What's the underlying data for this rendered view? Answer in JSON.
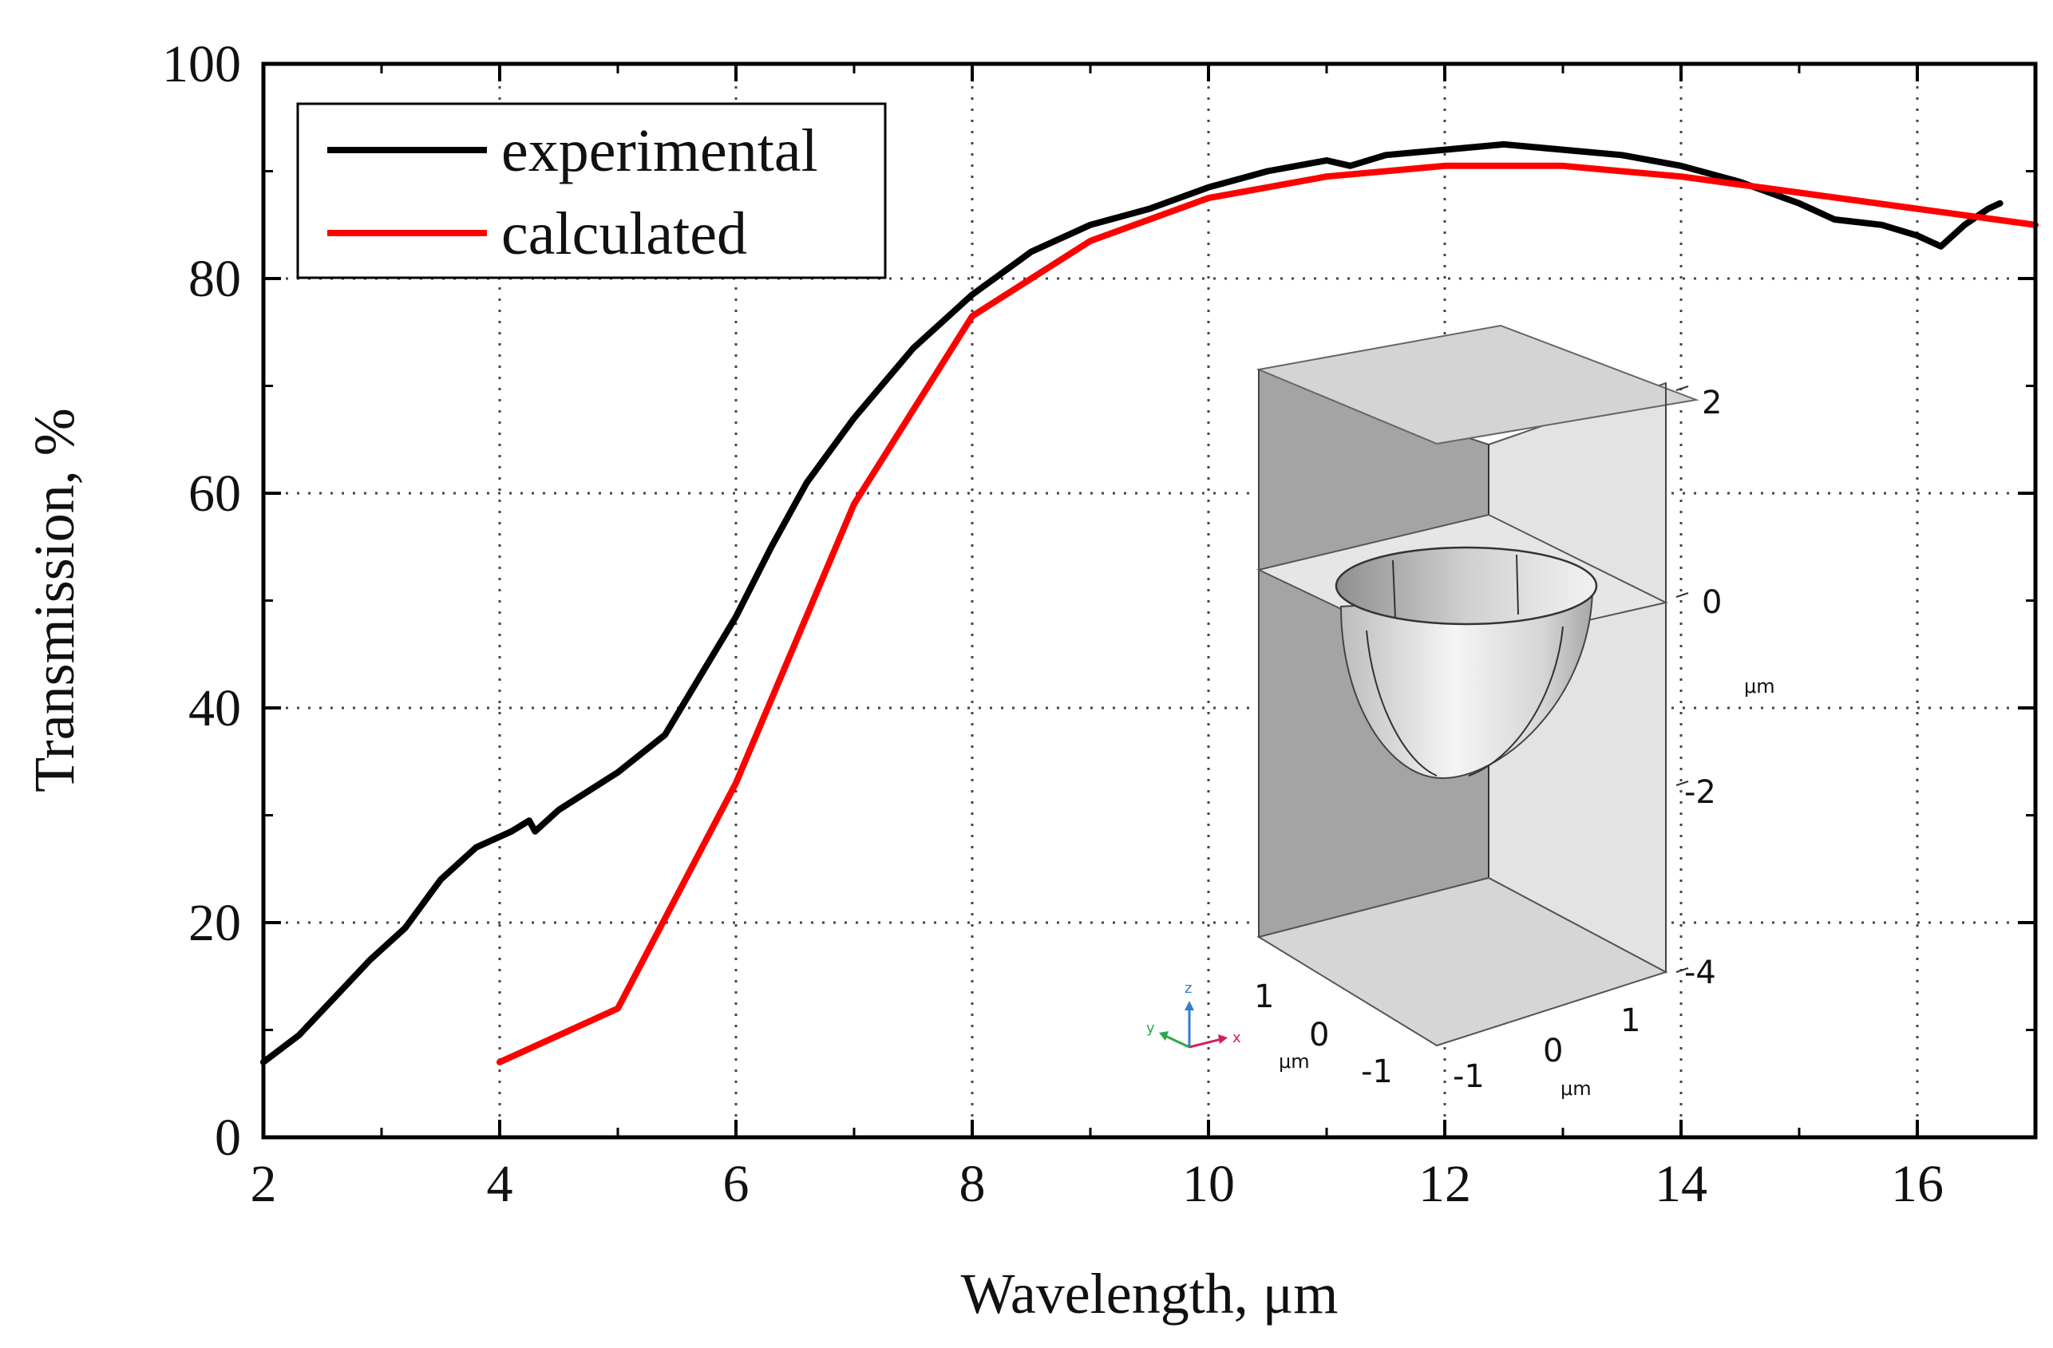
{
  "chart_data": {
    "type": "line",
    "title": "",
    "xlabel": "Wavelength, μm",
    "ylabel": "Transmission, %",
    "xlim": [
      2,
      17
    ],
    "ylim": [
      0,
      100
    ],
    "x_ticks": [
      2,
      4,
      6,
      8,
      10,
      12,
      14,
      16
    ],
    "y_ticks": [
      0,
      20,
      40,
      60,
      80,
      100
    ],
    "grid": true,
    "legend_position": "top-left",
    "series": [
      {
        "name": "experimental",
        "color": "#000000",
        "points": [
          [
            2.0,
            7.0
          ],
          [
            2.3,
            9.5
          ],
          [
            2.6,
            13.0
          ],
          [
            2.9,
            16.5
          ],
          [
            3.2,
            19.5
          ],
          [
            3.5,
            24.0
          ],
          [
            3.8,
            27.0
          ],
          [
            4.1,
            28.5
          ],
          [
            4.25,
            29.5
          ],
          [
            4.3,
            28.5
          ],
          [
            4.5,
            30.5
          ],
          [
            5.0,
            34.0
          ],
          [
            5.4,
            37.5
          ],
          [
            5.7,
            43.0
          ],
          [
            6.0,
            48.5
          ],
          [
            6.3,
            55.0
          ],
          [
            6.6,
            61.0
          ],
          [
            7.0,
            67.0
          ],
          [
            7.5,
            73.5
          ],
          [
            8.0,
            78.5
          ],
          [
            8.5,
            82.5
          ],
          [
            9.0,
            85.0
          ],
          [
            9.5,
            86.5
          ],
          [
            10.0,
            88.5
          ],
          [
            10.5,
            90.0
          ],
          [
            11.0,
            91.0
          ],
          [
            11.2,
            90.5
          ],
          [
            11.5,
            91.5
          ],
          [
            12.0,
            92.0
          ],
          [
            12.5,
            92.5
          ],
          [
            13.0,
            92.0
          ],
          [
            13.5,
            91.5
          ],
          [
            14.0,
            90.5
          ],
          [
            14.5,
            89.0
          ],
          [
            15.0,
            87.0
          ],
          [
            15.3,
            85.5
          ],
          [
            15.7,
            85.0
          ],
          [
            16.0,
            84.0
          ],
          [
            16.2,
            83.0
          ],
          [
            16.4,
            85.0
          ],
          [
            16.6,
            86.5
          ],
          [
            16.7,
            87.0
          ]
        ]
      },
      {
        "name": "calculated",
        "color": "#ff0000",
        "points": [
          [
            4.0,
            7.0
          ],
          [
            5.0,
            12.0
          ],
          [
            6.0,
            33.0
          ],
          [
            7.0,
            59.0
          ],
          [
            8.0,
            76.5
          ],
          [
            9.0,
            83.5
          ],
          [
            10.0,
            87.5
          ],
          [
            11.0,
            89.5
          ],
          [
            12.0,
            90.5
          ],
          [
            13.0,
            90.5
          ],
          [
            14.0,
            89.5
          ],
          [
            15.0,
            88.0
          ],
          [
            16.0,
            86.5
          ],
          [
            17.0,
            85.0
          ]
        ]
      }
    ],
    "inset": {
      "z_ticks": [
        "2",
        "0",
        "-2",
        "-4"
      ],
      "x_ticks": [
        "1",
        "0",
        "-1"
      ],
      "y_ticks": [
        "-1",
        "0",
        "1"
      ],
      "unit_label": "μm",
      "triad_labels": [
        "z",
        "y",
        "x"
      ]
    }
  }
}
